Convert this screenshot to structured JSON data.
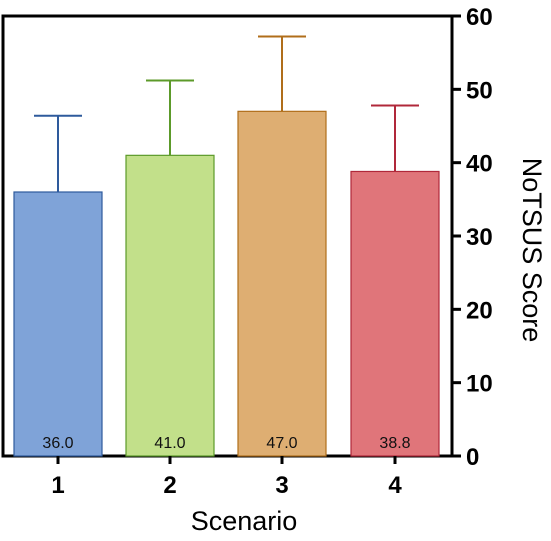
{
  "chart_data": {
    "type": "bar",
    "categories": [
      "1",
      "2",
      "3",
      "4"
    ],
    "values": [
      36.0,
      41.0,
      47.0,
      38.8
    ],
    "value_labels": [
      "36.0",
      "41.0",
      "47.0",
      "38.8"
    ],
    "error_upper": [
      46.4,
      51.2,
      57.2,
      47.8
    ],
    "colors": [
      "#7fa3d8",
      "#c2e08a",
      "#deae72",
      "#e0757a"
    ],
    "error_colors": [
      "#2e5a9c",
      "#5c9a2a",
      "#b06e1a",
      "#b0283a"
    ],
    "title": "",
    "xlabel": "Scenario",
    "ylabel": "NoTSUS Score",
    "ylim": [
      0,
      60
    ],
    "yticks": [
      0,
      10,
      20,
      30,
      40,
      50,
      60
    ],
    "y_axis_side": "right",
    "grid": false
  }
}
